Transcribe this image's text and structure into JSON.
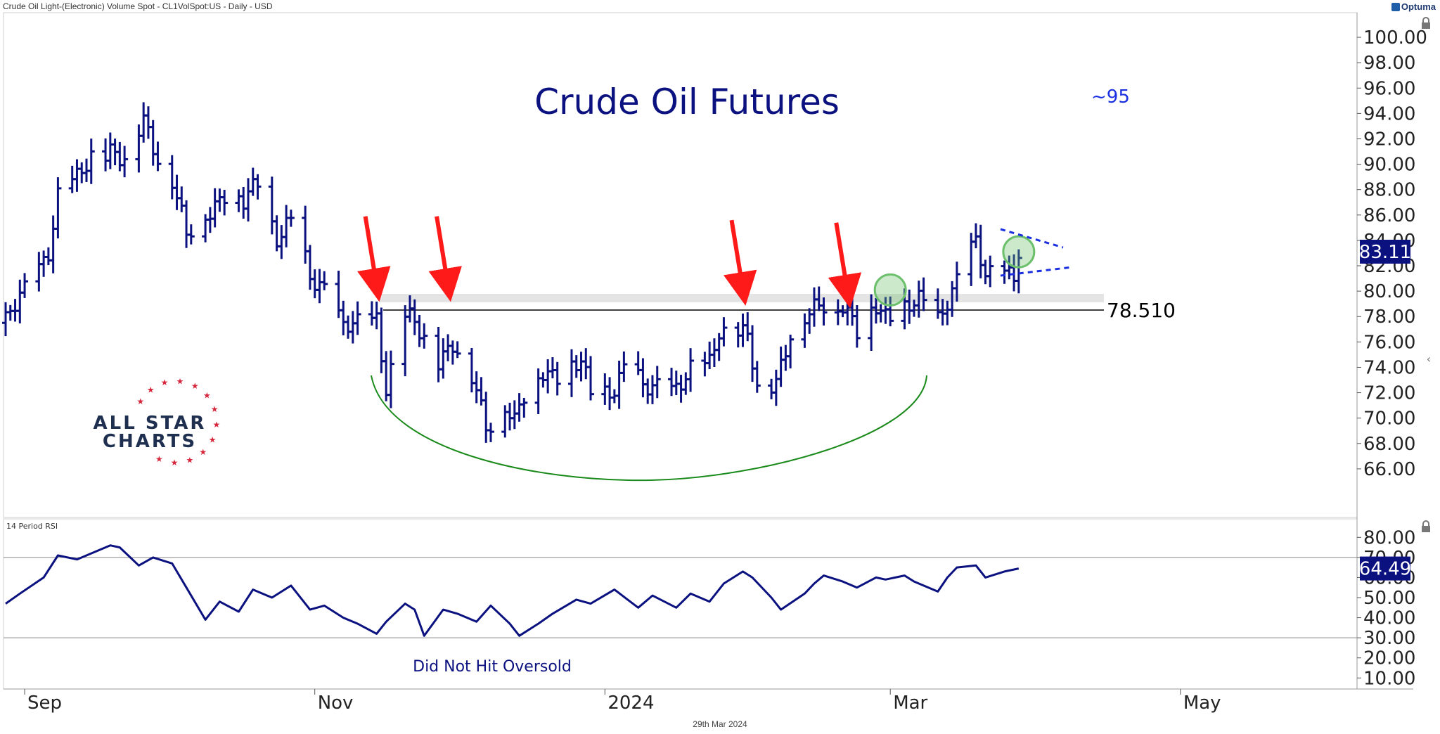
{
  "header": {
    "title": "Crude Oil Light-(Electronic) Volume Spot - CL1VolSpot:US - Daily - USD",
    "brand": "Optuma"
  },
  "footer": {
    "date": "29th Mar 2024"
  },
  "logo": {
    "line1": "ALL STAR",
    "line2": "CHARTS"
  },
  "colors": {
    "price_bar": "#0b1280",
    "arrow": "#ff1a1a",
    "base_arc": "#1a8a1a",
    "highlight_circle": "#6cc06c",
    "text_blue": "#0b1280",
    "resistance_line": "#000000"
  },
  "chart_data": [
    {
      "type": "ohlc",
      "panel": "price",
      "title": "Crude Oil Futures",
      "annotation_target": "~95",
      "resistance_level": 78.51,
      "resistance_label": "78.510",
      "last_value_label": "83.11",
      "ylim": [
        64,
        101
      ],
      "y_ticks": [
        "100.00",
        "98.00",
        "96.00",
        "94.00",
        "92.00",
        "90.00",
        "88.00",
        "86.00",
        "84.00",
        "82.00",
        "80.00",
        "78.00",
        "76.00",
        "74.00",
        "72.00",
        "70.00",
        "68.00",
        "66.00"
      ],
      "x_ticks": [
        "Sep",
        "Nov",
        "2024",
        "Mar",
        "May"
      ],
      "grid": false,
      "close_path": [
        [
          "2023-08-28",
          77.5
        ],
        [
          "2023-09-01",
          79.8
        ],
        [
          "2023-09-06",
          83.5
        ],
        [
          "2023-09-08",
          87.5
        ],
        [
          "2023-09-12",
          88.5
        ],
        [
          "2023-09-15",
          90.8
        ],
        [
          "2023-09-19",
          91.2
        ],
        [
          "2023-09-22",
          90.0
        ],
        [
          "2023-09-26",
          93.5
        ],
        [
          "2023-09-28",
          91.7
        ],
        [
          "2023-10-02",
          88.8
        ],
        [
          "2023-10-05",
          84.0
        ],
        [
          "2023-10-09",
          86.3
        ],
        [
          "2023-10-13",
          87.8
        ],
        [
          "2023-10-17",
          86.7
        ],
        [
          "2023-10-20",
          88.6
        ],
        [
          "2023-10-24",
          84.5
        ],
        [
          "2023-10-27",
          85.3
        ],
        [
          "2023-10-31",
          81.0
        ],
        [
          "2023-11-03",
          80.5
        ],
        [
          "2023-11-07",
          77.2
        ],
        [
          "2023-11-10",
          77.0
        ],
        [
          "2023-11-14",
          78.0
        ],
        [
          "2023-11-16",
          72.8
        ],
        [
          "2023-11-20",
          77.8
        ],
        [
          "2023-11-22",
          77.1
        ],
        [
          "2023-11-27",
          74.9
        ],
        [
          "2023-11-30",
          75.9
        ],
        [
          "2023-12-04",
          73.0
        ],
        [
          "2023-12-07",
          69.5
        ],
        [
          "2023-12-11",
          71.3
        ],
        [
          "2023-12-13",
          69.5
        ],
        [
          "2023-12-15",
          71.4
        ],
        [
          "2023-12-19",
          73.9
        ],
        [
          "2023-12-22",
          73.6
        ],
        [
          "2023-12-27",
          74.1
        ],
        [
          "2023-12-29",
          71.7
        ],
        [
          "2024-01-03",
          72.7
        ],
        [
          "2024-01-05",
          73.8
        ],
        [
          "2024-01-09",
          72.2
        ],
        [
          "2024-01-12",
          72.7
        ],
        [
          "2024-01-16",
          72.4
        ],
        [
          "2024-01-19",
          73.4
        ],
        [
          "2024-01-23",
          74.4
        ],
        [
          "2024-01-25",
          77.4
        ],
        [
          "2024-01-29",
          76.8
        ],
        [
          "2024-01-31",
          75.9
        ],
        [
          "2024-02-02",
          72.3
        ],
        [
          "2024-02-06",
          73.3
        ],
        [
          "2024-02-09",
          76.8
        ],
        [
          "2024-02-13",
          77.9
        ],
        [
          "2024-02-16",
          79.2
        ],
        [
          "2024-02-20",
          79.2
        ],
        [
          "2024-02-23",
          76.5
        ],
        [
          "2024-02-27",
          78.9
        ],
        [
          "2024-02-29",
          78.3
        ],
        [
          "2024-03-04",
          78.7
        ],
        [
          "2024-03-07",
          78.9
        ],
        [
          "2024-03-11",
          77.9
        ],
        [
          "2024-03-13",
          79.7
        ],
        [
          "2024-03-15",
          81.0
        ],
        [
          "2024-03-19",
          83.5
        ],
        [
          "2024-03-21",
          81.1
        ],
        [
          "2024-03-25",
          81.9
        ],
        [
          "2024-03-27",
          81.4
        ],
        [
          "2024-03-28",
          83.11
        ]
      ],
      "series_names": [],
      "annotations": [
        {
          "kind": "arrow",
          "date": "2023-11-14",
          "y": 79.8,
          "color": "#ff1a1a"
        },
        {
          "kind": "arrow",
          "date": "2023-11-29",
          "y": 79.8,
          "color": "#ff1a1a"
        },
        {
          "kind": "arrow",
          "date": "2024-01-30",
          "y": 79.5,
          "color": "#ff1a1a"
        },
        {
          "kind": "arrow",
          "date": "2024-02-21",
          "y": 79.3,
          "color": "#ff1a1a"
        },
        {
          "kind": "circle",
          "date": "2024-03-01",
          "y": 80.1
        },
        {
          "kind": "circle",
          "date": "2024-03-28",
          "y": 83.1
        }
      ]
    },
    {
      "type": "line",
      "panel": "rsi",
      "title": "14 Period RSI",
      "annotation": "Did Not Hit Oversold",
      "last_value_label": "64.49",
      "ylim": [
        8,
        85
      ],
      "y_ticks": [
        "80.00",
        "70.00",
        "60.00",
        "50.00",
        "40.00",
        "30.00",
        "20.00",
        "10.00"
      ],
      "reference_lines": [
        70,
        30
      ],
      "values": [
        [
          "2023-08-28",
          47
        ],
        [
          "2023-08-31",
          52
        ],
        [
          "2023-09-05",
          60
        ],
        [
          "2023-09-08",
          71
        ],
        [
          "2023-09-12",
          69
        ],
        [
          "2023-09-15",
          72
        ],
        [
          "2023-09-19",
          76
        ],
        [
          "2023-09-21",
          75
        ],
        [
          "2023-09-25",
          66
        ],
        [
          "2023-09-28",
          70
        ],
        [
          "2023-10-02",
          67
        ],
        [
          "2023-10-05",
          55
        ],
        [
          "2023-10-09",
          39
        ],
        [
          "2023-10-12",
          48
        ],
        [
          "2023-10-16",
          43
        ],
        [
          "2023-10-19",
          54
        ],
        [
          "2023-10-23",
          50
        ],
        [
          "2023-10-27",
          56
        ],
        [
          "2023-10-31",
          44
        ],
        [
          "2023-11-03",
          46
        ],
        [
          "2023-11-07",
          40
        ],
        [
          "2023-11-10",
          37
        ],
        [
          "2023-11-14",
          32
        ],
        [
          "2023-11-16",
          38
        ],
        [
          "2023-11-20",
          47
        ],
        [
          "2023-11-22",
          44
        ],
        [
          "2023-11-24",
          31
        ],
        [
          "2023-11-28",
          44
        ],
        [
          "2023-12-01",
          42
        ],
        [
          "2023-12-05",
          38
        ],
        [
          "2023-12-08",
          46
        ],
        [
          "2023-12-12",
          37
        ],
        [
          "2023-12-14",
          31
        ],
        [
          "2023-12-18",
          37
        ],
        [
          "2023-12-21",
          42
        ],
        [
          "2023-12-26",
          49
        ],
        [
          "2023-12-29",
          47
        ],
        [
          "2024-01-03",
          54
        ],
        [
          "2024-01-08",
          45
        ],
        [
          "2024-01-11",
          51
        ],
        [
          "2024-01-16",
          45
        ],
        [
          "2024-01-19",
          52
        ],
        [
          "2024-01-23",
          48
        ],
        [
          "2024-01-26",
          57
        ],
        [
          "2024-01-30",
          63
        ],
        [
          "2024-02-01",
          60
        ],
        [
          "2024-02-05",
          50
        ],
        [
          "2024-02-07",
          44
        ],
        [
          "2024-02-12",
          52
        ],
        [
          "2024-02-14",
          57
        ],
        [
          "2024-02-16",
          61
        ],
        [
          "2024-02-20",
          58
        ],
        [
          "2024-02-23",
          55
        ],
        [
          "2024-02-27",
          60
        ],
        [
          "2024-02-29",
          59
        ],
        [
          "2024-03-04",
          61
        ],
        [
          "2024-03-06",
          58
        ],
        [
          "2024-03-11",
          53
        ],
        [
          "2024-03-13",
          60
        ],
        [
          "2024-03-15",
          65
        ],
        [
          "2024-03-19",
          66
        ],
        [
          "2024-03-21",
          60
        ],
        [
          "2024-03-25",
          63
        ],
        [
          "2024-03-28",
          64.49
        ]
      ]
    }
  ]
}
